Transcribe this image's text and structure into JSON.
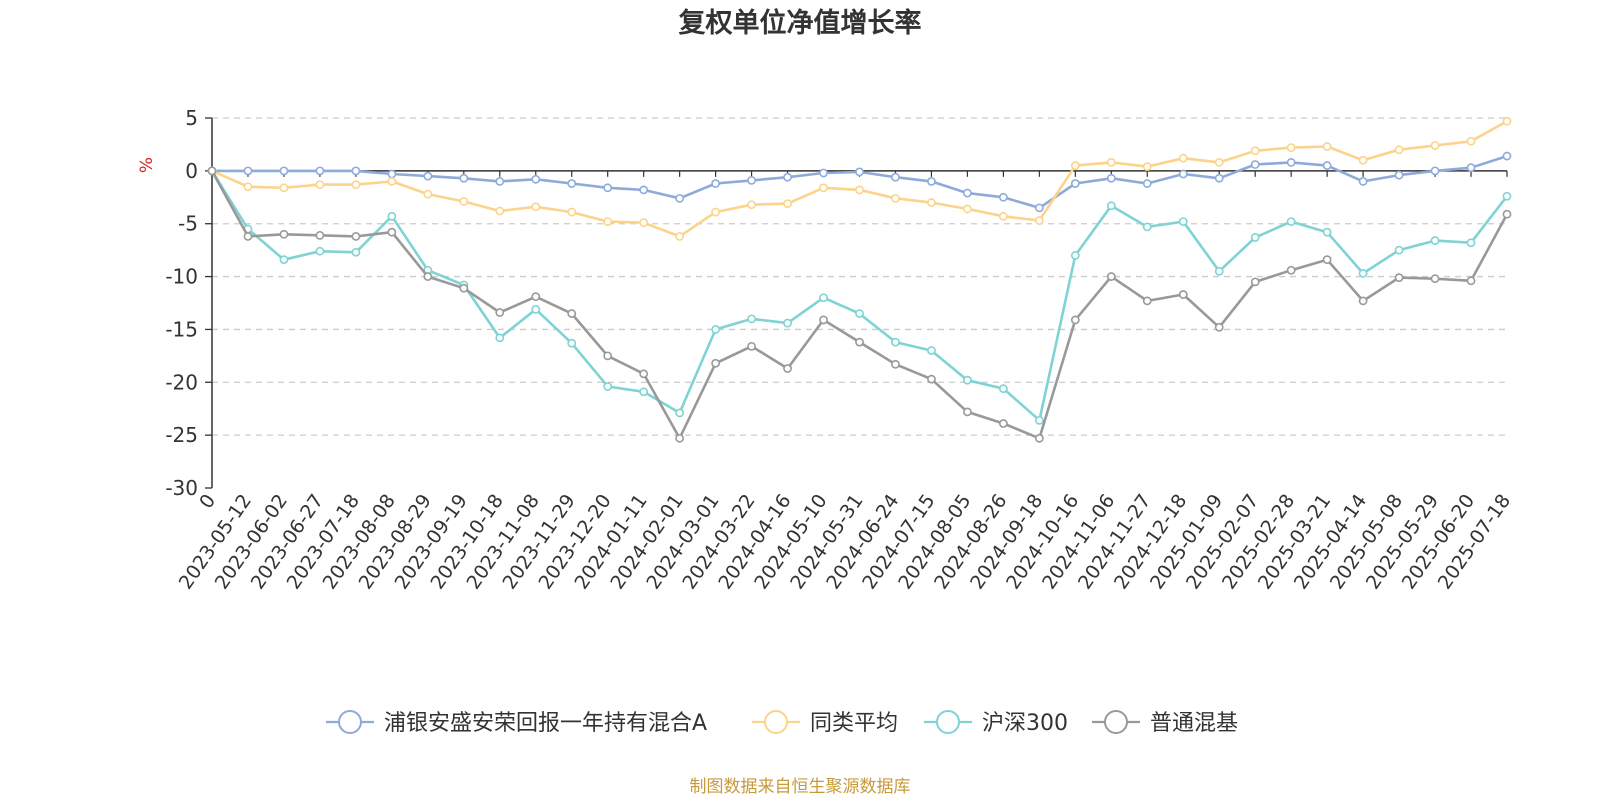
{
  "chart_data": {
    "type": "line",
    "title": "复权单位净值增长率",
    "ylabel": "%",
    "ylim": [
      -30,
      5
    ],
    "y_ticks": [
      5,
      0,
      -5,
      -10,
      -15,
      -20,
      -25,
      -30
    ],
    "x_tick_labels": [
      "0",
      "2023-05-12",
      "2023-06-02",
      "2023-06-27",
      "2023-07-18",
      "2023-08-08",
      "2023-08-29",
      "2023-09-19",
      "2023-10-18",
      "2023-11-08",
      "2023-11-29",
      "2023-12-20",
      "2024-01-11",
      "2024-02-01",
      "2024-03-01",
      "2024-03-22",
      "2024-04-16",
      "2024-05-10",
      "2024-05-31",
      "2024-06-24",
      "2024-07-15",
      "2024-08-05",
      "2024-08-26",
      "2024-09-18",
      "2024-10-16",
      "2024-11-06",
      "2024-11-27",
      "2024-12-18",
      "2025-01-09",
      "2025-02-07",
      "2025-02-28",
      "2025-03-21",
      "2025-04-14",
      "2025-05-08",
      "2025-05-29",
      "2025-06-20",
      "2025-07-18"
    ],
    "grid": true,
    "legend_position": "bottom",
    "source": "制图数据来自恒生聚源数据库",
    "series": [
      {
        "name": "浦银安盛安荣回报一年持有混合A",
        "color": "#8eaadb",
        "values": [
          0,
          0,
          0,
          0,
          0,
          -0.3,
          -0.5,
          -0.7,
          -1,
          -0.8,
          -1.2,
          -1.6,
          -1.8,
          -2.6,
          -1.2,
          -0.9,
          -0.6,
          -0.2,
          -0.1,
          -0.6,
          -1,
          -2.1,
          -2.5,
          -3.5,
          -1.2,
          -0.7,
          -1.2,
          -0.3,
          -0.7,
          0.6,
          0.8,
          0.5,
          -1,
          -0.4,
          0,
          0.3,
          1.4
        ]
      },
      {
        "name": "同类平均",
        "color": "#fcd38b",
        "values": [
          0,
          -1.5,
          -1.6,
          -1.3,
          -1.3,
          -1,
          -2.2,
          -2.9,
          -3.8,
          -3.4,
          -3.9,
          -4.8,
          -4.9,
          -6.2,
          -3.9,
          -3.2,
          -3.1,
          -1.6,
          -1.8,
          -2.6,
          -3,
          -3.6,
          -4.3,
          -4.7,
          0.5,
          0.8,
          0.4,
          1.2,
          0.8,
          1.9,
          2.2,
          2.3,
          1,
          2,
          2.4,
          2.8,
          4.7
        ]
      },
      {
        "name": "沪深300",
        "color": "#7fd3d3",
        "values": [
          0,
          -5.5,
          -8.4,
          -7.6,
          -7.7,
          -4.3,
          -9.4,
          -10.8,
          -15.8,
          -13.1,
          -16.3,
          -20.4,
          -20.9,
          -22.9,
          -15,
          -14,
          -14.4,
          -12,
          -13.5,
          -16.2,
          -17,
          -19.8,
          -20.6,
          -23.6,
          -8,
          -3.3,
          -5.3,
          -4.8,
          -9.5,
          -6.3,
          -4.8,
          -5.8,
          -9.7,
          -7.5,
          -6.6,
          -6.8,
          -2.4
        ]
      },
      {
        "name": "普通混基",
        "color": "#999999",
        "values": [
          0,
          -6.2,
          -6,
          -6.1,
          -6.2,
          -5.8,
          -10,
          -11.1,
          -13.4,
          -11.9,
          -13.5,
          -17.5,
          -19.2,
          -25.3,
          -18.2,
          -16.6,
          -18.7,
          -14.1,
          -16.2,
          -18.3,
          -19.7,
          -22.8,
          -23.9,
          -25.3,
          -14.1,
          -10,
          -12.3,
          -11.7,
          -14.8,
          -10.5,
          -9.4,
          -8.4,
          -12.3,
          -10.1,
          -10.2,
          -10.4,
          -4.1
        ]
      }
    ]
  }
}
